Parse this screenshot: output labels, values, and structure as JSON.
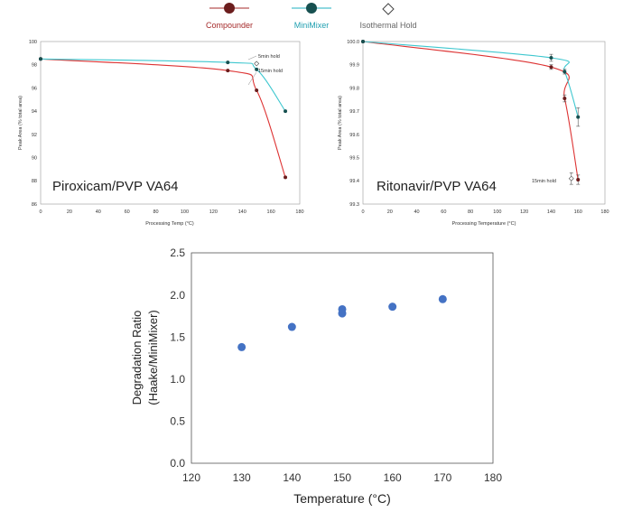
{
  "legend": {
    "items": [
      {
        "label": "Compounder",
        "color": "#a52a2a",
        "marker": "filled",
        "text_color": "#a52a2a"
      },
      {
        "label": "MiniMixer",
        "color": "#1fb1c1",
        "marker": "filled-dark",
        "text_color": "#1f9fb0"
      },
      {
        "label": "Isothermal Hold",
        "color": "#666666",
        "marker": "diamond",
        "text_color": "#666666"
      }
    ]
  },
  "chart_data": [
    {
      "type": "line",
      "overlay_text": "Piroxicam/PVP VA64",
      "xlabel": "Processing Temp (°C)",
      "ylabel": "Peak Area (% total area)",
      "xlim": [
        0,
        180
      ],
      "ylim": [
        86,
        100
      ],
      "xticks": [
        "0",
        "20",
        "40",
        "60",
        "80",
        "100",
        "120",
        "140",
        "160",
        "180"
      ],
      "yticks": [
        "86",
        "88",
        "90",
        "92",
        "94",
        "96",
        "98",
        "100"
      ],
      "series": [
        {
          "name": "Compounder",
          "color": "#dd3333",
          "marker": "#6b1d1d",
          "points": [
            [
              0,
              98.5
            ],
            [
              130,
              97.5
            ],
            [
              150,
              95.8
            ],
            [
              170,
              88.3
            ]
          ]
        },
        {
          "name": "MiniMixer",
          "color": "#3ec7cf",
          "marker": "#175050",
          "points": [
            [
              0,
              98.5
            ],
            [
              130,
              98.2
            ],
            [
              150,
              97.6
            ],
            [
              170,
              94.0
            ]
          ]
        }
      ],
      "hold_points": [
        [
          150,
          98.1
        ]
      ],
      "annotations": [
        {
          "text": "5min hold",
          "x": 150,
          "y": 98.1
        },
        {
          "text": "15min hold",
          "x": 150,
          "y": 96.0
        }
      ]
    },
    {
      "type": "line",
      "overlay_text": "Ritonavir/PVP VA64",
      "xlabel": "Processing Temperature (°C)",
      "ylabel": "Peak Area (% total area)",
      "xlim": [
        0,
        180
      ],
      "ylim": [
        99.3,
        100.0
      ],
      "xticks": [
        "0",
        "20",
        "40",
        "60",
        "80",
        "100",
        "120",
        "140",
        "160",
        "180"
      ],
      "yticks": [
        "99.3",
        "99.4",
        "99.5",
        "99.6",
        "99.7",
        "99.8",
        "99.9",
        "100.0"
      ],
      "series": [
        {
          "name": "Compounder",
          "color": "#dd3333",
          "marker": "#6b1d1d",
          "points": [
            [
              0,
              100.0
            ],
            [
              140,
              99.89
            ],
            [
              150,
              99.755
            ],
            [
              160,
              99.405
            ]
          ],
          "errors": [
            0.01,
            0.015,
            0.02
          ]
        },
        {
          "name": "MiniMixer",
          "color": "#3ec7cf",
          "marker": "#175050",
          "points": [
            [
              0,
              100.0
            ],
            [
              140,
              99.93
            ],
            [
              150,
              99.87
            ],
            [
              160,
              99.675
            ]
          ],
          "errors": [
            0.015,
            0.01,
            0.04
          ]
        }
      ],
      "hold_points": [
        [
          155,
          99.41
        ]
      ],
      "hold_errors": [
        0.025
      ],
      "annotations": [
        {
          "text": "15min hold",
          "x": 155,
          "y": 99.41
        }
      ]
    },
    {
      "type": "scatter",
      "xlabel": "Temperature (°C)",
      "ylabel_lines": [
        "Degradation Ratio",
        "(Haake/MiniMixer)"
      ],
      "xlim": [
        120,
        180
      ],
      "ylim": [
        0,
        2.5
      ],
      "xticks": [
        "120",
        "130",
        "140",
        "150",
        "160",
        "170",
        "180"
      ],
      "yticks": [
        "0.0",
        "0.5",
        "1.0",
        "1.5",
        "2.0",
        "2.5"
      ],
      "color": "#4472c4",
      "x": [
        130,
        140,
        150,
        150,
        160,
        170
      ],
      "y": [
        1.38,
        1.62,
        1.78,
        1.83,
        1.86,
        1.95
      ]
    }
  ]
}
